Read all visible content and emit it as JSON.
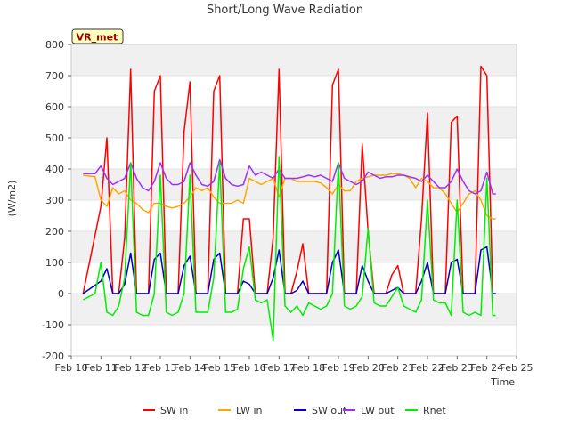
{
  "chart_data": {
    "type": "line",
    "title": "Short/Long Wave Radiation",
    "xlabel": "Time",
    "ylabel": "(W/m2)",
    "site_label": "VR_met",
    "xlim": [
      10,
      25
    ],
    "ylim": [
      -200,
      800
    ],
    "x_ticks": [
      {
        "value": 10,
        "label": "Feb 10"
      },
      {
        "value": 11,
        "label": "Feb 11"
      },
      {
        "value": 12,
        "label": "Feb 12"
      },
      {
        "value": 13,
        "label": "Feb 13"
      },
      {
        "value": 14,
        "label": "Feb 14"
      },
      {
        "value": 15,
        "label": "Feb 15"
      },
      {
        "value": 16,
        "label": "Feb 16"
      },
      {
        "value": 17,
        "label": "Feb 17"
      },
      {
        "value": 18,
        "label": "Feb 18"
      },
      {
        "value": 19,
        "label": "Feb 19"
      },
      {
        "value": 20,
        "label": "Feb 20"
      },
      {
        "value": 21,
        "label": "Feb 21"
      },
      {
        "value": 22,
        "label": "Feb 22"
      },
      {
        "value": 23,
        "label": "Feb 23"
      },
      {
        "value": 24,
        "label": "Feb 24"
      },
      {
        "value": 25,
        "label": "Feb 25"
      }
    ],
    "y_ticks": [
      -200,
      -100,
      0,
      100,
      200,
      300,
      400,
      500,
      600,
      700,
      800
    ],
    "grid": "horizontal bands",
    "legend_position": "bottom-center",
    "series": [
      {
        "name": "SW in",
        "color": "#ff0000",
        "x": [
          10.4,
          11.0,
          11.2,
          11.4,
          11.6,
          11.8,
          12.0,
          12.2,
          12.4,
          12.6,
          12.8,
          13.0,
          13.2,
          13.4,
          13.6,
          13.8,
          14.0,
          14.2,
          14.4,
          14.6,
          14.8,
          15.0,
          15.2,
          15.4,
          15.6,
          15.8,
          16.0,
          16.2,
          16.4,
          16.6,
          16.8,
          17.0,
          17.2,
          17.4,
          17.6,
          17.8,
          18.0,
          18.2,
          18.4,
          18.6,
          18.8,
          19.0,
          19.2,
          19.4,
          19.6,
          19.8,
          20.0,
          20.2,
          20.4,
          20.6,
          20.8,
          21.0,
          21.2,
          21.4,
          21.6,
          21.8,
          22.0,
          22.2,
          22.4,
          22.6,
          22.8,
          23.0,
          23.2,
          23.4,
          23.6,
          23.8,
          24.0,
          24.2,
          24.3
        ],
        "y": [
          0,
          280,
          500,
          0,
          0,
          180,
          720,
          0,
          0,
          0,
          650,
          700,
          0,
          0,
          0,
          520,
          680,
          0,
          0,
          0,
          650,
          700,
          0,
          0,
          0,
          240,
          240,
          0,
          0,
          0,
          180,
          720,
          0,
          0,
          70,
          160,
          0,
          0,
          0,
          0,
          670,
          720,
          0,
          0,
          0,
          480,
          200,
          0,
          0,
          0,
          60,
          90,
          0,
          0,
          0,
          240,
          580,
          0,
          0,
          0,
          550,
          570,
          0,
          0,
          0,
          730,
          700,
          0,
          0
        ]
      },
      {
        "name": "LW in",
        "color": "#ffa500",
        "x": [
          10.4,
          10.8,
          11.0,
          11.2,
          11.4,
          11.6,
          11.8,
          12.0,
          12.2,
          12.4,
          12.6,
          12.8,
          13.0,
          13.2,
          13.4,
          13.6,
          13.8,
          14.0,
          14.2,
          14.4,
          14.6,
          14.8,
          15.0,
          15.2,
          15.4,
          15.6,
          15.8,
          16.0,
          16.2,
          16.4,
          16.6,
          16.8,
          17.0,
          17.2,
          17.4,
          17.6,
          17.8,
          18.0,
          18.2,
          18.4,
          18.6,
          18.8,
          19.0,
          19.2,
          19.4,
          19.6,
          19.8,
          20.0,
          20.2,
          20.4,
          20.6,
          20.8,
          21.0,
          21.2,
          21.4,
          21.6,
          21.8,
          22.0,
          22.2,
          22.4,
          22.6,
          22.8,
          23.0,
          23.2,
          23.4,
          23.6,
          23.8,
          24.0,
          24.2,
          24.3
        ],
        "y": [
          380,
          375,
          300,
          280,
          340,
          320,
          330,
          300,
          290,
          270,
          260,
          290,
          290,
          280,
          275,
          280,
          290,
          310,
          340,
          330,
          340,
          310,
          290,
          290,
          290,
          300,
          290,
          370,
          360,
          350,
          360,
          370,
          310,
          370,
          370,
          360,
          360,
          360,
          360,
          355,
          340,
          320,
          350,
          330,
          330,
          360,
          370,
          375,
          380,
          380,
          380,
          385,
          385,
          380,
          370,
          340,
          370,
          360,
          340,
          340,
          320,
          290,
          260,
          290,
          320,
          330,
          300,
          250,
          240,
          240
        ]
      },
      {
        "name": "SW out",
        "color": "#0000cc",
        "x": [
          10.4,
          11.0,
          11.2,
          11.4,
          11.6,
          11.8,
          12.0,
          12.2,
          12.4,
          12.6,
          12.8,
          13.0,
          13.2,
          13.4,
          13.6,
          13.8,
          14.0,
          14.2,
          14.4,
          14.6,
          14.8,
          15.0,
          15.2,
          15.4,
          15.6,
          15.8,
          16.0,
          16.2,
          16.4,
          16.6,
          16.8,
          17.0,
          17.2,
          17.4,
          17.6,
          17.8,
          18.0,
          18.2,
          18.4,
          18.6,
          18.8,
          19.0,
          19.2,
          19.4,
          19.6,
          19.8,
          20.0,
          20.2,
          20.4,
          20.6,
          20.8,
          21.0,
          21.2,
          21.4,
          21.6,
          21.8,
          22.0,
          22.2,
          22.4,
          22.6,
          22.8,
          23.0,
          23.2,
          23.4,
          23.6,
          23.8,
          24.0,
          24.2,
          24.3
        ],
        "y": [
          0,
          40,
          80,
          0,
          0,
          30,
          130,
          0,
          0,
          0,
          110,
          130,
          0,
          0,
          0,
          90,
          120,
          0,
          0,
          0,
          110,
          130,
          0,
          0,
          0,
          40,
          30,
          0,
          0,
          0,
          50,
          140,
          0,
          0,
          10,
          40,
          0,
          0,
          0,
          0,
          100,
          140,
          0,
          0,
          0,
          90,
          40,
          0,
          0,
          0,
          10,
          20,
          0,
          0,
          0,
          40,
          100,
          0,
          0,
          0,
          100,
          110,
          0,
          0,
          0,
          140,
          150,
          0,
          0
        ]
      },
      {
        "name": "LW out",
        "color": "#9b30ff",
        "x": [
          10.4,
          10.8,
          11.0,
          11.2,
          11.4,
          11.6,
          11.8,
          12.0,
          12.2,
          12.4,
          12.6,
          12.8,
          13.0,
          13.2,
          13.4,
          13.6,
          13.8,
          14.0,
          14.2,
          14.4,
          14.6,
          14.8,
          15.0,
          15.2,
          15.4,
          15.6,
          15.8,
          16.0,
          16.2,
          16.4,
          16.6,
          16.8,
          17.0,
          17.2,
          17.4,
          17.6,
          17.8,
          18.0,
          18.2,
          18.4,
          18.6,
          18.8,
          19.0,
          19.2,
          19.4,
          19.6,
          19.8,
          20.0,
          20.2,
          20.4,
          20.6,
          20.8,
          21.0,
          21.2,
          21.4,
          21.6,
          21.8,
          22.0,
          22.2,
          22.4,
          22.6,
          22.8,
          23.0,
          23.2,
          23.4,
          23.6,
          23.8,
          24.0,
          24.2,
          24.3
        ],
        "y": [
          385,
          385,
          410,
          370,
          350,
          360,
          370,
          420,
          370,
          340,
          330,
          360,
          420,
          370,
          350,
          350,
          360,
          420,
          380,
          350,
          345,
          360,
          430,
          370,
          350,
          345,
          350,
          410,
          380,
          390,
          380,
          370,
          400,
          370,
          370,
          370,
          375,
          380,
          375,
          380,
          370,
          360,
          420,
          370,
          360,
          350,
          360,
          390,
          380,
          370,
          375,
          375,
          380,
          380,
          375,
          370,
          360,
          380,
          360,
          340,
          340,
          360,
          400,
          360,
          330,
          320,
          330,
          390,
          320,
          320
        ]
      },
      {
        "name": "Rnet",
        "color": "#00ee00",
        "x": [
          10.4,
          10.8,
          11.0,
          11.2,
          11.4,
          11.6,
          11.8,
          12.0,
          12.2,
          12.4,
          12.6,
          12.8,
          13.0,
          13.2,
          13.4,
          13.6,
          13.8,
          14.0,
          14.2,
          14.4,
          14.6,
          14.8,
          15.0,
          15.2,
          15.4,
          15.6,
          15.8,
          16.0,
          16.2,
          16.4,
          16.6,
          16.8,
          17.0,
          17.2,
          17.4,
          17.6,
          17.8,
          18.0,
          18.2,
          18.4,
          18.6,
          18.8,
          19.0,
          19.2,
          19.4,
          19.6,
          19.8,
          20.0,
          20.2,
          20.4,
          20.6,
          20.8,
          21.0,
          21.2,
          21.4,
          21.6,
          21.8,
          22.0,
          22.2,
          22.4,
          22.6,
          22.8,
          23.0,
          23.2,
          23.4,
          23.6,
          23.8,
          24.0,
          24.2,
          24.3
        ],
        "y": [
          -20,
          0,
          100,
          -60,
          -70,
          -40,
          50,
          420,
          -60,
          -70,
          -70,
          0,
          380,
          -60,
          -70,
          -60,
          0,
          380,
          -60,
          -60,
          -60,
          50,
          420,
          -60,
          -60,
          -50,
          80,
          150,
          -20,
          -30,
          -20,
          -150,
          440,
          -40,
          -60,
          -40,
          -70,
          -30,
          -40,
          -50,
          -40,
          0,
          420,
          -40,
          -50,
          -40,
          -10,
          210,
          -30,
          -40,
          -40,
          -10,
          20,
          -40,
          -50,
          -60,
          -20,
          300,
          -20,
          -30,
          -30,
          -70,
          300,
          -60,
          -70,
          -60,
          -70,
          370,
          -70,
          -70
        ]
      }
    ]
  }
}
